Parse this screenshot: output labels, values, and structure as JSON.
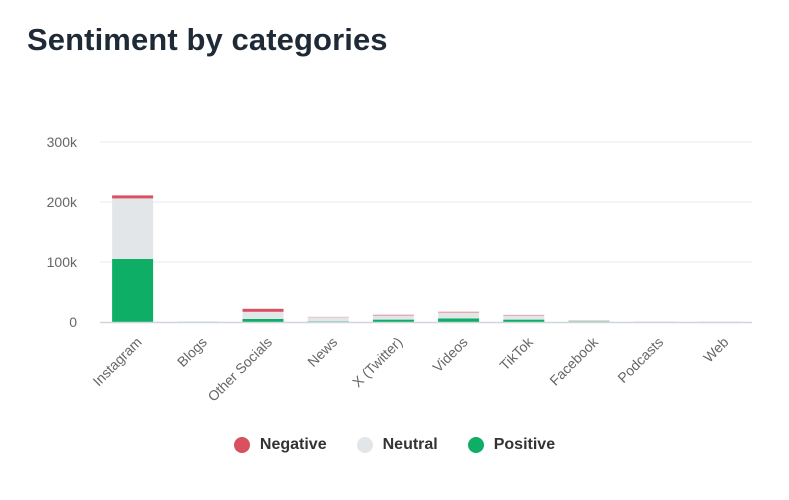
{
  "title": "Sentiment by categories",
  "chart_data": {
    "type": "bar",
    "stacked": true,
    "title": "Sentiment by categories",
    "xlabel": "",
    "ylabel": "",
    "ylim": [
      0,
      300000
    ],
    "yticks": [
      0,
      100000,
      200000,
      300000
    ],
    "ytick_labels": [
      "0",
      "100k",
      "200k",
      "300k"
    ],
    "grid": true,
    "legend_position": "bottom",
    "categories": [
      "Instagram",
      "Blogs",
      "Other Socials",
      "News",
      "X (Twitter)",
      "Videos",
      "TikTok",
      "Facebook",
      "Podcasts",
      "Web"
    ],
    "series": [
      {
        "name": "Positive",
        "color": "#0fae67",
        "values": [
          105000,
          300,
          5000,
          1000,
          4000,
          6000,
          4000,
          1000,
          200,
          100
        ]
      },
      {
        "name": "Neutral",
        "color": "#e3e6e9",
        "values": [
          101000,
          500,
          12000,
          7000,
          7000,
          10000,
          7000,
          2000,
          500,
          300
        ]
      },
      {
        "name": "Negative",
        "color": "#d9505f",
        "values": [
          5000,
          100,
          5000,
          500,
          1000,
          1000,
          800,
          200,
          100,
          50
        ]
      }
    ]
  }
}
